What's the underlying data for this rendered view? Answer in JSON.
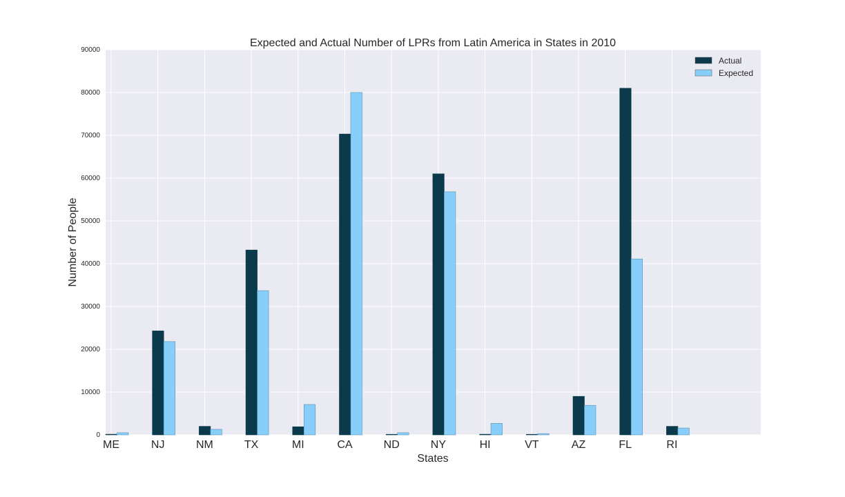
{
  "chart_data": {
    "type": "bar",
    "title": "Expected and Actual Number of LPRs from Latin America in States in 2010",
    "xlabel": "States",
    "ylabel": "Number of People",
    "categories": [
      "ME",
      "NJ",
      "NM",
      "TX",
      "MI",
      "CA",
      "ND",
      "NY",
      "HI",
      "VT",
      "AZ",
      "FL",
      "RI"
    ],
    "series": [
      {
        "name": "Actual",
        "color": "#0a3a4c",
        "values": [
          150,
          24300,
          2000,
          43200,
          1900,
          70300,
          50,
          61000,
          150,
          50,
          9000,
          81000,
          2000
        ]
      },
      {
        "name": "Expected",
        "color": "#87cefa",
        "values": [
          500,
          21800,
          1300,
          33700,
          7100,
          80000,
          500,
          56800,
          2700,
          300,
          6900,
          41100,
          1600
        ]
      }
    ],
    "ylim": [
      0,
      90000
    ],
    "yticks": [
      "0",
      "10000",
      "20000",
      "30000",
      "40000",
      "50000",
      "60000",
      "70000",
      "80000",
      "90000"
    ],
    "grid": true,
    "legend_position": "top-right",
    "background": "#eaeaf2"
  }
}
